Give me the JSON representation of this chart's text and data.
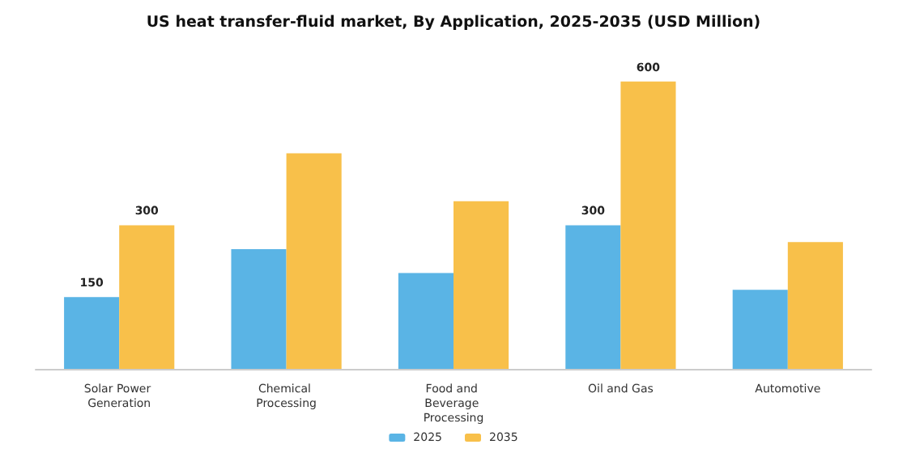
{
  "chart_data": {
    "type": "bar",
    "title": "US heat transfer-fluid market, By Application, 2025-2035 (USD Million)",
    "categories": [
      "Solar Power Generation",
      "Chemical Processing",
      "Food and Beverage Processing",
      "Oil and Gas",
      "Automotive"
    ],
    "series": [
      {
        "name": "2025",
        "color": "#5ab4e5",
        "values": [
          150,
          250,
          200,
          300,
          165
        ],
        "value_labels": [
          "150",
          null,
          null,
          "300",
          null
        ]
      },
      {
        "name": "2035",
        "color": "#f8c04a",
        "values": [
          300,
          450,
          350,
          600,
          265
        ],
        "value_labels": [
          "300",
          null,
          null,
          "600",
          null
        ]
      }
    ],
    "legend": "bottom"
  }
}
